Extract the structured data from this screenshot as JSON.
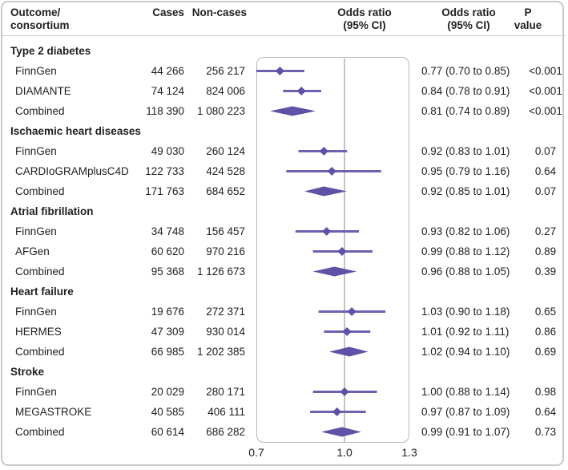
{
  "header": {
    "outcome_line1": "Outcome/",
    "outcome_line2": "consortium",
    "cases": "Cases",
    "noncases": "Non-cases",
    "plot_or_line1": "Odds ratio",
    "plot_or_line2": "(95% CI)",
    "or_line1": "Odds ratio",
    "or_line2": "(95% CI)",
    "p_line1": "P",
    "p_line2": "value"
  },
  "axis": {
    "scale": "log",
    "min": 0.7,
    "ref": 1.0,
    "max": 1.3,
    "ticks": [
      {
        "label": "0.7",
        "value": 0.7
      },
      {
        "label": "1.0",
        "value": 1.0
      },
      {
        "label": "1.3",
        "value": 1.3
      }
    ]
  },
  "colors": {
    "marker": "#5f51a5",
    "ci_line": "#6e61b0",
    "ref_line": "#c4c4c4",
    "panel_border": "#b8b8b8",
    "frame_border": "#c9c9c9",
    "text": "#202020"
  },
  "chart_data": {
    "type": "forest",
    "x_axis": {
      "scale": "log",
      "xlim": [
        0.7,
        1.3
      ],
      "reference_line": 1.0,
      "ticks": [
        0.7,
        1.0,
        1.3
      ]
    },
    "columns": [
      "Outcome/consortium",
      "Cases",
      "Non-cases",
      "Odds ratio (95% CI) plot",
      "Odds ratio (95% CI)",
      "P value"
    ],
    "groups": [
      {
        "label": "Type 2 diabetes",
        "rows": [
          {
            "label": "FinnGen",
            "cases": "44 266",
            "noncases": "256 217",
            "or": 0.77,
            "lo": 0.7,
            "hi": 0.85,
            "or_text": "0.77 (0.70 to 0.85)",
            "p": "<0.001",
            "combined": false
          },
          {
            "label": "DIAMANTE",
            "cases": "74 124",
            "noncases": "824 006",
            "or": 0.84,
            "lo": 0.78,
            "hi": 0.91,
            "or_text": "0.84 (0.78 to 0.91)",
            "p": "<0.001",
            "combined": false
          },
          {
            "label": "Combined",
            "cases": "118 390",
            "noncases": "1 080 223",
            "or": 0.81,
            "lo": 0.74,
            "hi": 0.89,
            "or_text": "0.81 (0.74 to 0.89)",
            "p": "<0.001",
            "combined": true
          }
        ]
      },
      {
        "label": "Ischaemic heart diseases",
        "rows": [
          {
            "label": "FinnGen",
            "cases": "49 030",
            "noncases": "260 124",
            "or": 0.92,
            "lo": 0.83,
            "hi": 1.01,
            "or_text": "0.92 (0.83 to 1.01)",
            "p": "0.07",
            "combined": false
          },
          {
            "label": "CARDIoGRAMplusC4D",
            "cases": "122 733",
            "noncases": "424 528",
            "or": 0.95,
            "lo": 0.79,
            "hi": 1.16,
            "or_text": "0.95 (0.79 to 1.16)",
            "p": "0.64",
            "combined": false
          },
          {
            "label": "Combined",
            "cases": "171 763",
            "noncases": "684 652",
            "or": 0.92,
            "lo": 0.85,
            "hi": 1.01,
            "or_text": "0.92 (0.85 to 1.01)",
            "p": "0.07",
            "combined": true
          }
        ]
      },
      {
        "label": "Atrial fibrillation",
        "rows": [
          {
            "label": "FinnGen",
            "cases": "34 748",
            "noncases": "156 457",
            "or": 0.93,
            "lo": 0.82,
            "hi": 1.06,
            "or_text": "0.93 (0.82 to 1.06)",
            "p": "0.27",
            "combined": false
          },
          {
            "label": "AFGen",
            "cases": "60 620",
            "noncases": "970 216",
            "or": 0.99,
            "lo": 0.88,
            "hi": 1.12,
            "or_text": "0.99 (0.88 to 1.12)",
            "p": "0.89",
            "combined": false
          },
          {
            "label": "Combined",
            "cases": "95 368",
            "noncases": "1 126 673",
            "or": 0.96,
            "lo": 0.88,
            "hi": 1.05,
            "or_text": "0.96 (0.88 to 1.05)",
            "p": "0.39",
            "combined": true
          }
        ]
      },
      {
        "label": "Heart failure",
        "rows": [
          {
            "label": "FinnGen",
            "cases": "19 676",
            "noncases": "272 371",
            "or": 1.03,
            "lo": 0.9,
            "hi": 1.18,
            "or_text": "1.03 (0.90 to 1.18)",
            "p": "0.65",
            "combined": false
          },
          {
            "label": "HERMES",
            "cases": "47 309",
            "noncases": "930 014",
            "or": 1.01,
            "lo": 0.92,
            "hi": 1.11,
            "or_text": "1.01 (0.92 to 1.11)",
            "p": "0.86",
            "combined": false
          },
          {
            "label": "Combined",
            "cases": "66 985",
            "noncases": "1 202 385",
            "or": 1.02,
            "lo": 0.94,
            "hi": 1.1,
            "or_text": "1.02 (0.94 to 1.10)",
            "p": "0.69",
            "combined": true
          }
        ]
      },
      {
        "label": "Stroke",
        "rows": [
          {
            "label": "FinnGen",
            "cases": "20 029",
            "noncases": "280 171",
            "or": 1.0,
            "lo": 0.88,
            "hi": 1.14,
            "or_text": "1.00 (0.88 to 1.14)",
            "p": "0.98",
            "combined": false
          },
          {
            "label": "MEGASTROKE",
            "cases": "40 585",
            "noncases": "406 111",
            "or": 0.97,
            "lo": 0.87,
            "hi": 1.09,
            "or_text": "0.97 (0.87 to 1.09)",
            "p": "0.64",
            "combined": false
          },
          {
            "label": "Combined",
            "cases": "60 614",
            "noncases": "686 282",
            "or": 0.99,
            "lo": 0.91,
            "hi": 1.07,
            "or_text": "0.99 (0.91 to 1.07)",
            "p": "0.73",
            "combined": true
          }
        ]
      }
    ]
  }
}
